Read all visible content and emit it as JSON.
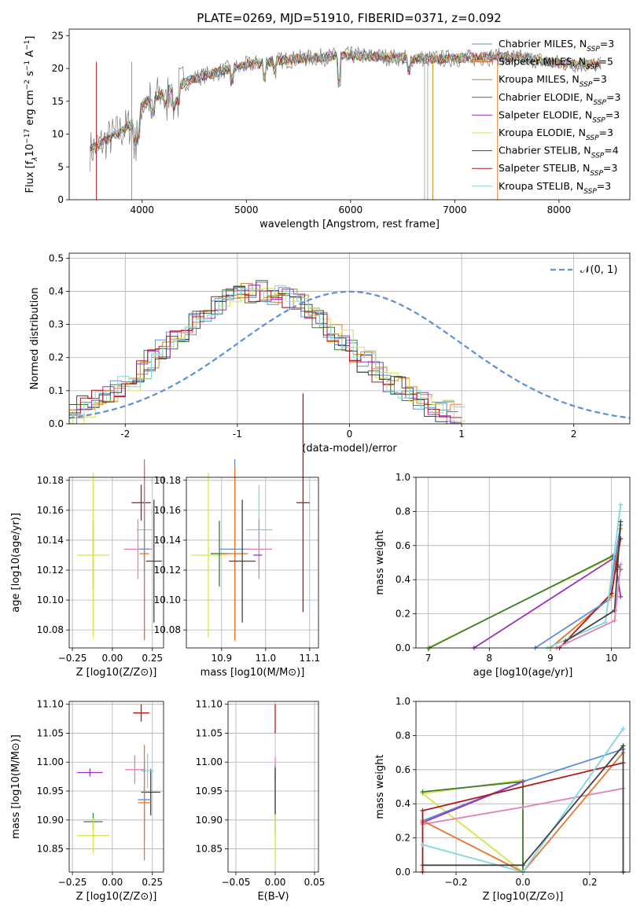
{
  "figure_title": "PLATE=0269, MJD=51910, FIBERID=0371, z=0.092",
  "colors": {
    "Chabrier MILES": "#5b8fd9",
    "Salpeter MILES": "#e8772e",
    "Kroupa MILES": "#c2862a",
    "Chabrier ELODIE": "#3a7d3a",
    "Salpeter ELODIE": "#9b30c0",
    "Kroupa ELODIE": "#d8e24a",
    "Chabrier STELIB": "#444444",
    "Salpeter STELIB": "#b01818",
    "Kroupa STELIB": "#7fd8e0",
    "pink": "#e57fb5",
    "normal": "#5b8fd9"
  },
  "chart_data": [
    {
      "id": "spectrum",
      "type": "line",
      "title": "PLATE=0269, MJD=51910, FIBERID=0371, z=0.092",
      "xlabel": "wavelength [Angstrom, rest frame]",
      "ylabel": "Flux [f_λ 10^-17 erg cm^-2 s^-1 A^-1]",
      "xlim": [
        3300,
        8680
      ],
      "ylim": [
        0,
        26
      ],
      "xticks": [
        4000,
        5000,
        6000,
        7000,
        8000
      ],
      "yticks": [
        0,
        5,
        10,
        15,
        20,
        25
      ],
      "grid": false,
      "legend_position": "upper right",
      "legend": [
        {
          "name": "Chabrier MILES",
          "nssp": "3"
        },
        {
          "name": "Salpeter MILES",
          "nssp": "5"
        },
        {
          "name": "Kroupa MILES",
          "nssp": "3"
        },
        {
          "name": "Chabrier ELODIE",
          "nssp": "3"
        },
        {
          "name": "Salpeter ELODIE",
          "nssp": "3"
        },
        {
          "name": "Kroupa ELODIE",
          "nssp": "3"
        },
        {
          "name": "Chabrier STELIB",
          "nssp": "4"
        },
        {
          "name": "Salpeter STELIB",
          "nssp": "3"
        },
        {
          "name": "Kroupa STELIB",
          "nssp": "3"
        }
      ],
      "continuum": {
        "x": [
          3500,
          3650,
          3800,
          3900,
          4000,
          4100,
          4300,
          4500,
          4800,
          5000,
          5200,
          5500,
          5800,
          6000,
          6300,
          6600,
          7000,
          7400,
          7700,
          8000,
          8400
        ],
        "y": [
          7.5,
          9.0,
          10.5,
          11.5,
          14.5,
          15.5,
          17.0,
          18.5,
          19.8,
          20.5,
          21.0,
          21.5,
          21.8,
          22.0,
          21.8,
          21.5,
          21.5,
          21.8,
          21.5,
          20.8,
          20.5
        ]
      }
    },
    {
      "id": "residuals",
      "type": "line",
      "xlabel": "(data-model)/error",
      "ylabel": "Normed distribution",
      "xlim": [
        -2.5,
        2.5
      ],
      "ylim": [
        0,
        0.515
      ],
      "xticks": [
        -2,
        -1,
        0,
        1,
        2
      ],
      "yticks": [
        0.0,
        0.1,
        0.2,
        0.3,
        0.4,
        0.5
      ],
      "grid": true,
      "legend_position": "upper right",
      "legend": [
        "𝒩(0, 1)"
      ],
      "histogram_bin_width": 0.1,
      "histogram_center": [
        0.02,
        0.03,
        0.05,
        0.07,
        0.09,
        0.11,
        0.13,
        0.16,
        0.19,
        0.22,
        0.25,
        0.28,
        0.31,
        0.34,
        0.36,
        0.38,
        0.39,
        0.4,
        0.4,
        0.39,
        0.38,
        0.36,
        0.34,
        0.31,
        0.28,
        0.25,
        0.22,
        0.19,
        0.16,
        0.13,
        0.11,
        0.09,
        0.07,
        0.05,
        0.04,
        0.03
      ]
    },
    {
      "id": "age_vs_Z",
      "type": "scatter",
      "xlabel": "Z [log10(Z/Z⊙)]",
      "ylabel": "age  [log10(age/yr)]",
      "xlim": [
        -0.27,
        0.32
      ],
      "ylim": [
        10.068,
        10.182
      ],
      "xticks": [
        -0.25,
        0.0,
        0.25
      ],
      "xtick_labels": [
        "−0.25",
        "0.00",
        "0.25"
      ],
      "yticks": [
        10.08,
        10.1,
        10.12,
        10.14,
        10.16,
        10.18
      ],
      "ytick_labels": [
        "10.08",
        "10.10",
        "10.12",
        "10.14",
        "10.16",
        "10.18"
      ],
      "grid": true,
      "points": [
        {
          "series": "Chabrier ELODIE",
          "x": -0.12,
          "y": 10.13,
          "xerr": 0.0,
          "yerr": 0.023
        },
        {
          "series": "Kroupa ELODIE",
          "x": -0.12,
          "y": 10.13,
          "xerr": 0.1,
          "yerr": 0.055
        },
        {
          "series": "Salpeter STELIB",
          "x": 0.18,
          "y": 10.165,
          "xerr": 0.06,
          "yerr": 0.012
        },
        {
          "series": "pink",
          "x": 0.16,
          "y": 10.134,
          "xerr": 0.09,
          "yerr": 0.02
        },
        {
          "series": "Kroupa STELIB",
          "x": 0.2,
          "y": 10.147,
          "xerr": 0.05,
          "yerr": 0.03
        },
        {
          "series": "Chabrier MILES",
          "x": 0.2,
          "y": 10.134,
          "xerr": 0.03,
          "yerr": 0.06
        },
        {
          "series": "Salpeter MILES",
          "x": 0.2,
          "y": 10.131,
          "xerr": 0.03,
          "yerr": 0.058
        },
        {
          "series": "Chabrier STELIB",
          "x": 0.26,
          "y": 10.126,
          "xerr": 0.05,
          "yerr": 0.041
        }
      ]
    },
    {
      "id": "age_vs_mass",
      "type": "scatter",
      "xlabel": "mass [log10(M/M⊙)]",
      "xlim": [
        10.82,
        11.12
      ],
      "ylim": [
        10.068,
        10.182
      ],
      "xticks": [
        10.9,
        11.0,
        11.1
      ],
      "xtick_labels": [
        "10.9",
        "11.0",
        "11.1"
      ],
      "yticks": [
        10.08,
        10.1,
        10.12,
        10.14,
        10.16,
        10.18
      ],
      "ytick_labels": [
        "10.08",
        "10.10",
        "10.12",
        "10.14",
        "10.16",
        "10.18"
      ],
      "grid": true,
      "points": [
        {
          "series": "Kroupa ELODIE",
          "x": 10.87,
          "y": 10.13,
          "xerr": 0.04,
          "yerr": 0.055
        },
        {
          "series": "Chabrier ELODIE",
          "x": 10.895,
          "y": 10.131,
          "xerr": 0.02,
          "yerr": 0.022
        },
        {
          "series": "Chabrier MILES",
          "x": 10.93,
          "y": 10.134,
          "xerr": 0.035,
          "yerr": 0.06
        },
        {
          "series": "Salpeter MILES",
          "x": 10.93,
          "y": 10.131,
          "xerr": 0.03,
          "yerr": 0.058
        },
        {
          "series": "Chabrier STELIB",
          "x": 10.947,
          "y": 10.126,
          "xerr": 0.03,
          "yerr": 0.041
        },
        {
          "series": "Kroupa STELIB",
          "x": 10.985,
          "y": 10.147,
          "xerr": 0.03,
          "yerr": 0.03
        },
        {
          "series": "pink",
          "x": 10.985,
          "y": 10.134,
          "xerr": 0.03,
          "yerr": 0.02
        },
        {
          "series": "Salpeter ELODIE",
          "x": 10.982,
          "y": 10.13,
          "xerr": 0.01,
          "yerr": 0.0
        },
        {
          "series": "Salpeter STELIB",
          "x": 11.085,
          "y": 10.165,
          "xerr": 0.015,
          "yerr": 0.073
        }
      ]
    },
    {
      "id": "weight_vs_age",
      "type": "line",
      "xlabel": "age  [log10(age/yr)]",
      "ylabel": "mass weight",
      "xlim": [
        6.8,
        10.3
      ],
      "ylim": [
        0,
        1
      ],
      "xticks": [
        7,
        8,
        9,
        10
      ],
      "yticks": [
        0.0,
        0.2,
        0.4,
        0.6,
        0.8,
        1.0
      ],
      "grid": true,
      "series": [
        {
          "name": "Kroupa ELODIE",
          "x": [
            6.99,
            10.0,
            10.15
          ],
          "y": [
            0.0,
            0.53,
            0.46
          ]
        },
        {
          "name": "Chabrier ELODIE",
          "x": [
            7.02,
            10.02,
            10.15
          ],
          "y": [
            0.0,
            0.54,
            0.46
          ]
        },
        {
          "name": "Salpeter ELODIE",
          "x": [
            7.75,
            10.05,
            10.15
          ],
          "y": [
            0.0,
            0.53,
            0.3
          ]
        },
        {
          "name": "Salpeter MILES",
          "x": [
            9.0,
            10.0,
            10.15
          ],
          "y": [
            0.0,
            0.3,
            0.7
          ]
        },
        {
          "name": "Salpeter STELIB",
          "x": [
            9.15,
            10.0,
            10.15
          ],
          "y": [
            0.0,
            0.32,
            0.64
          ]
        },
        {
          "name": "Chabrier MILES",
          "x": [
            8.75,
            9.95,
            10.15
          ],
          "y": [
            0.0,
            0.28,
            0.72
          ]
        },
        {
          "name": "Kroupa STELIB",
          "x": [
            8.95,
            9.9,
            10.15
          ],
          "y": [
            0.0,
            0.15,
            0.84
          ]
        },
        {
          "name": "Chabrier STELIB",
          "x": [
            9.25,
            10.05,
            10.15
          ],
          "y": [
            0.04,
            0.22,
            0.74
          ]
        },
        {
          "name": "pink",
          "x": [
            9.1,
            10.05,
            10.15
          ],
          "y": [
            0.0,
            0.16,
            0.49
          ]
        }
      ]
    },
    {
      "id": "mass_vs_Z",
      "type": "scatter",
      "xlabel": "Z [log10(Z/Z⊙)]",
      "ylabel": "mass [log10(M/M⊙)]",
      "xlim": [
        -0.27,
        0.32
      ],
      "ylim": [
        10.81,
        11.105
      ],
      "xticks": [
        -0.25,
        0.0,
        0.25
      ],
      "xtick_labels": [
        "−0.25",
        "0.00",
        "0.25"
      ],
      "yticks": [
        10.85,
        10.9,
        10.95,
        11.0,
        11.05,
        11.1
      ],
      "ytick_labels": [
        "10.85",
        "10.90",
        "10.95",
        "11.00",
        "11.05",
        "11.10"
      ],
      "grid": true,
      "points": [
        {
          "series": "Salpeter STELIB",
          "x": 0.18,
          "y": 11.085,
          "xerr": 0.05,
          "yerr": 0.015
        },
        {
          "series": "Salpeter ELODIE",
          "x": -0.14,
          "y": 10.982,
          "xerr": 0.08,
          "yerr": 0.007
        },
        {
          "series": "pink",
          "x": 0.14,
          "y": 10.987,
          "xerr": 0.06,
          "yerr": 0.025
        },
        {
          "series": "Chabrier STELIB",
          "x": 0.24,
          "y": 10.948,
          "xerr": 0.06,
          "yerr": 0.04
        },
        {
          "series": "Kroupa STELIB",
          "x": 0.22,
          "y": 10.985,
          "xerr": 0.04,
          "yerr": 0.03
        },
        {
          "series": "Chabrier MILES",
          "x": 0.2,
          "y": 10.935,
          "xerr": 0.04,
          "yerr": 0.07
        },
        {
          "series": "Salpeter MILES",
          "x": 0.2,
          "y": 10.93,
          "xerr": 0.04,
          "yerr": 0.1
        },
        {
          "series": "Chabrier ELODIE",
          "x": -0.12,
          "y": 10.897,
          "xerr": 0.06,
          "yerr": 0.015
        },
        {
          "series": "Kroupa ELODIE",
          "x": -0.12,
          "y": 10.873,
          "xerr": 0.1,
          "yerr": 0.03
        }
      ]
    },
    {
      "id": "mass_vs_ebv",
      "type": "scatter",
      "xlabel": "E(B-V)",
      "xlim": [
        -0.06,
        0.055
      ],
      "ylim": [
        10.81,
        11.105
      ],
      "xticks": [
        -0.05,
        0.0,
        0.05
      ],
      "xtick_labels": [
        "−0.05",
        "0.00",
        "0.05"
      ],
      "yticks": [
        10.85,
        10.9,
        10.95,
        11.0,
        11.05,
        11.1
      ],
      "ytick_labels": [
        "10.85",
        "10.90",
        "10.95",
        "11.00",
        "11.05",
        "11.10"
      ],
      "grid": true,
      "points": [
        {
          "series": "Salpeter STELIB",
          "x": 0.0,
          "y": 11.075,
          "xerr": 0.0,
          "yerr": 0.025
        },
        {
          "series": "pink",
          "x": 0.0,
          "y": 10.99,
          "xerr": 0.0,
          "yerr": 0.02
        },
        {
          "series": "Chabrier MILES",
          "x": 0.0,
          "y": 10.935,
          "xerr": 0.0,
          "yerr": 0.06
        },
        {
          "series": "Kroupa ELODIE",
          "x": 0.0,
          "y": 10.9,
          "xerr": 0.0,
          "yerr": 0.08
        },
        {
          "series": "Chabrier STELIB",
          "x": 0.0,
          "y": 10.95,
          "xerr": 0.0,
          "yerr": 0.04
        }
      ]
    },
    {
      "id": "weight_vs_Z",
      "type": "line",
      "xlabel": "Z [log10(Z/Z⊙)]",
      "ylabel": "mass weight",
      "xlim": [
        -0.32,
        0.32
      ],
      "ylim": [
        0,
        1
      ],
      "xticks": [
        -0.2,
        0.0,
        0.2
      ],
      "xtick_labels": [
        "−0.2",
        "0.0",
        "0.2"
      ],
      "yticks": [
        0.0,
        0.2,
        0.4,
        0.6,
        0.8,
        1.0
      ],
      "grid": true,
      "series": [
        {
          "name": "Kroupa ELODIE",
          "x": [
            -0.3,
            0.0,
            0.0,
            -0.3
          ],
          "y": [
            0.46,
            0.54,
            0.0,
            0.46
          ]
        },
        {
          "name": "Chabrier ELODIE",
          "x": [
            -0.3,
            0.0,
            0.0
          ],
          "y": [
            0.47,
            0.53,
            0.0
          ]
        },
        {
          "name": "Chabrier MILES",
          "x": [
            -0.3,
            0.0,
            0.3
          ],
          "y": [
            0.3,
            0.53,
            0.72
          ]
        },
        {
          "name": "pink",
          "x": [
            -0.3,
            0.0,
            0.3,
            0.3
          ],
          "y": [
            0.28,
            0.38,
            0.49,
            0.0
          ]
        },
        {
          "name": "Salpeter ELODIE",
          "x": [
            -0.3,
            0.0
          ],
          "y": [
            0.29,
            0.53
          ]
        },
        {
          "name": "Salpeter MILES",
          "x": [
            -0.3,
            0.0,
            0.3
          ],
          "y": [
            0.3,
            0.0,
            0.7
          ]
        },
        {
          "name": "Salpeter STELIB",
          "x": [
            -0.3,
            -0.3,
            0.3
          ],
          "y": [
            0.0,
            0.36,
            0.64
          ]
        },
        {
          "name": "Kroupa STELIB",
          "x": [
            -0.3,
            0.0,
            0.3
          ],
          "y": [
            0.16,
            0.0,
            0.84
          ]
        },
        {
          "name": "Chabrier STELIB",
          "x": [
            -0.3,
            0.0,
            0.3,
            0.3
          ],
          "y": [
            0.04,
            0.04,
            0.74,
            0.0
          ]
        }
      ]
    }
  ]
}
